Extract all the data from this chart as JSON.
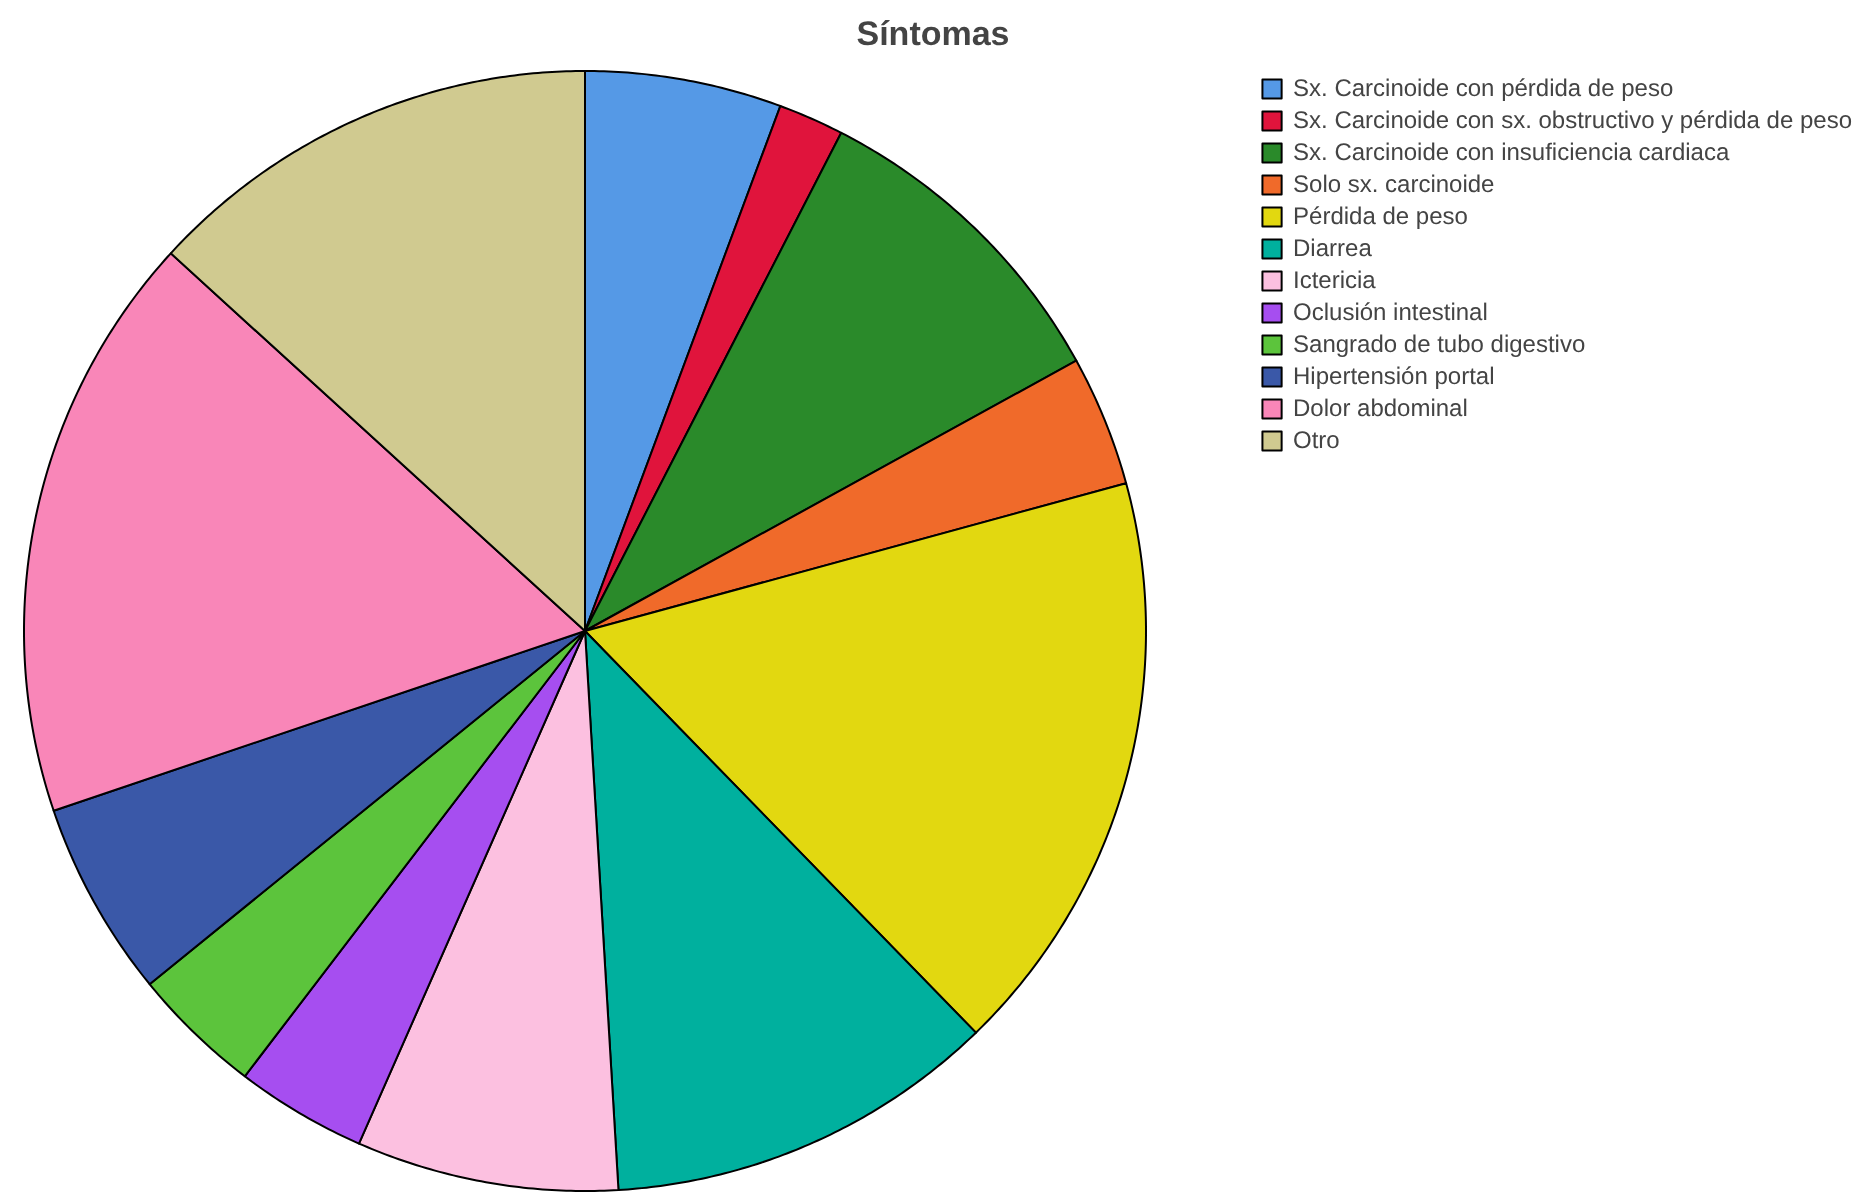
{
  "chart_data": {
    "type": "pie",
    "title": "Síntomas",
    "categories": [
      "Sx. Carcinoide con pérdida de peso",
      "Sx. Carcinoide con sx. obstructivo y pérdida de peso",
      "Sx. Carcinoide con insuficiencia cardiaca",
      "Solo sx. carcinoide",
      "Pérdida de peso",
      "Diarrea",
      "Ictericia",
      "Oclusión intestinal",
      "Sangrado de tubo digestivo",
      "Hipertensión portal",
      "Dolor abdominal",
      "Otro"
    ],
    "values": [
      5.66,
      1.89,
      9.43,
      3.77,
      16.98,
      11.32,
      7.55,
      3.77,
      3.77,
      5.66,
      16.98,
      13.22
    ],
    "colors": [
      "#5599e6",
      "#e0143c",
      "#2a8a2a",
      "#f06a2a",
      "#e2d810",
      "#00b09e",
      "#fcc0e0",
      "#a64ef0",
      "#5cc43c",
      "#3a58a8",
      "#f986b8",
      "#d0ca90"
    ],
    "legend": "top right"
  }
}
